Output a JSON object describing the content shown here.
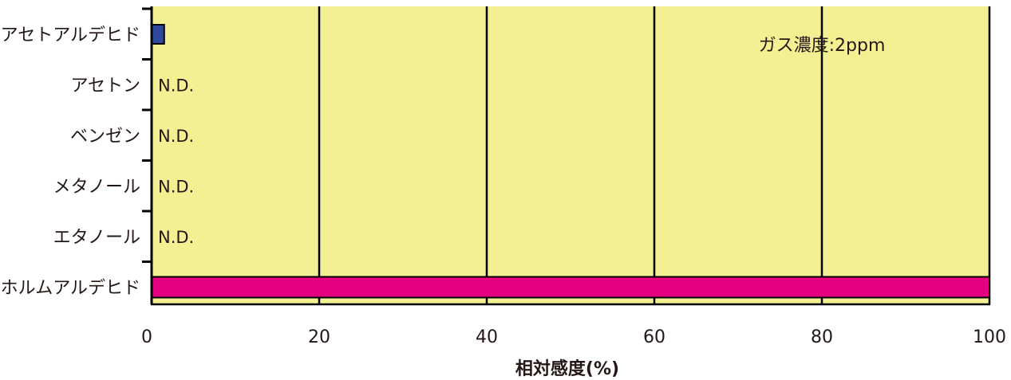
{
  "chart_data": {
    "type": "bar",
    "orientation": "horizontal",
    "categories": [
      "アセトアルデヒド",
      "アセトン",
      "ベンゼン",
      "メタノール",
      "エタノール",
      "ホルムアルデヒド"
    ],
    "values": [
      1.5,
      0,
      0,
      0,
      0,
      100
    ],
    "value_labels": [
      "",
      "N.D.",
      "N.D.",
      "N.D.",
      "N.D.",
      ""
    ],
    "bar_colors": [
      "#2e4a9e",
      null,
      null,
      null,
      null,
      "#e4007f"
    ],
    "xlabel": "相対感度(%)",
    "ylabel": "",
    "xlim": [
      0,
      100
    ],
    "xticks": [
      0,
      20,
      40,
      60,
      80,
      100
    ],
    "tick_labels": [
      "0",
      "20",
      "40",
      "60",
      "80",
      "100"
    ],
    "grid": true,
    "annotation": "ガス濃度:2ppm",
    "colors": {
      "plot_background": "#f3ef93",
      "axis": "#000000",
      "text": "#231815",
      "bar_outline": "#000000"
    }
  }
}
